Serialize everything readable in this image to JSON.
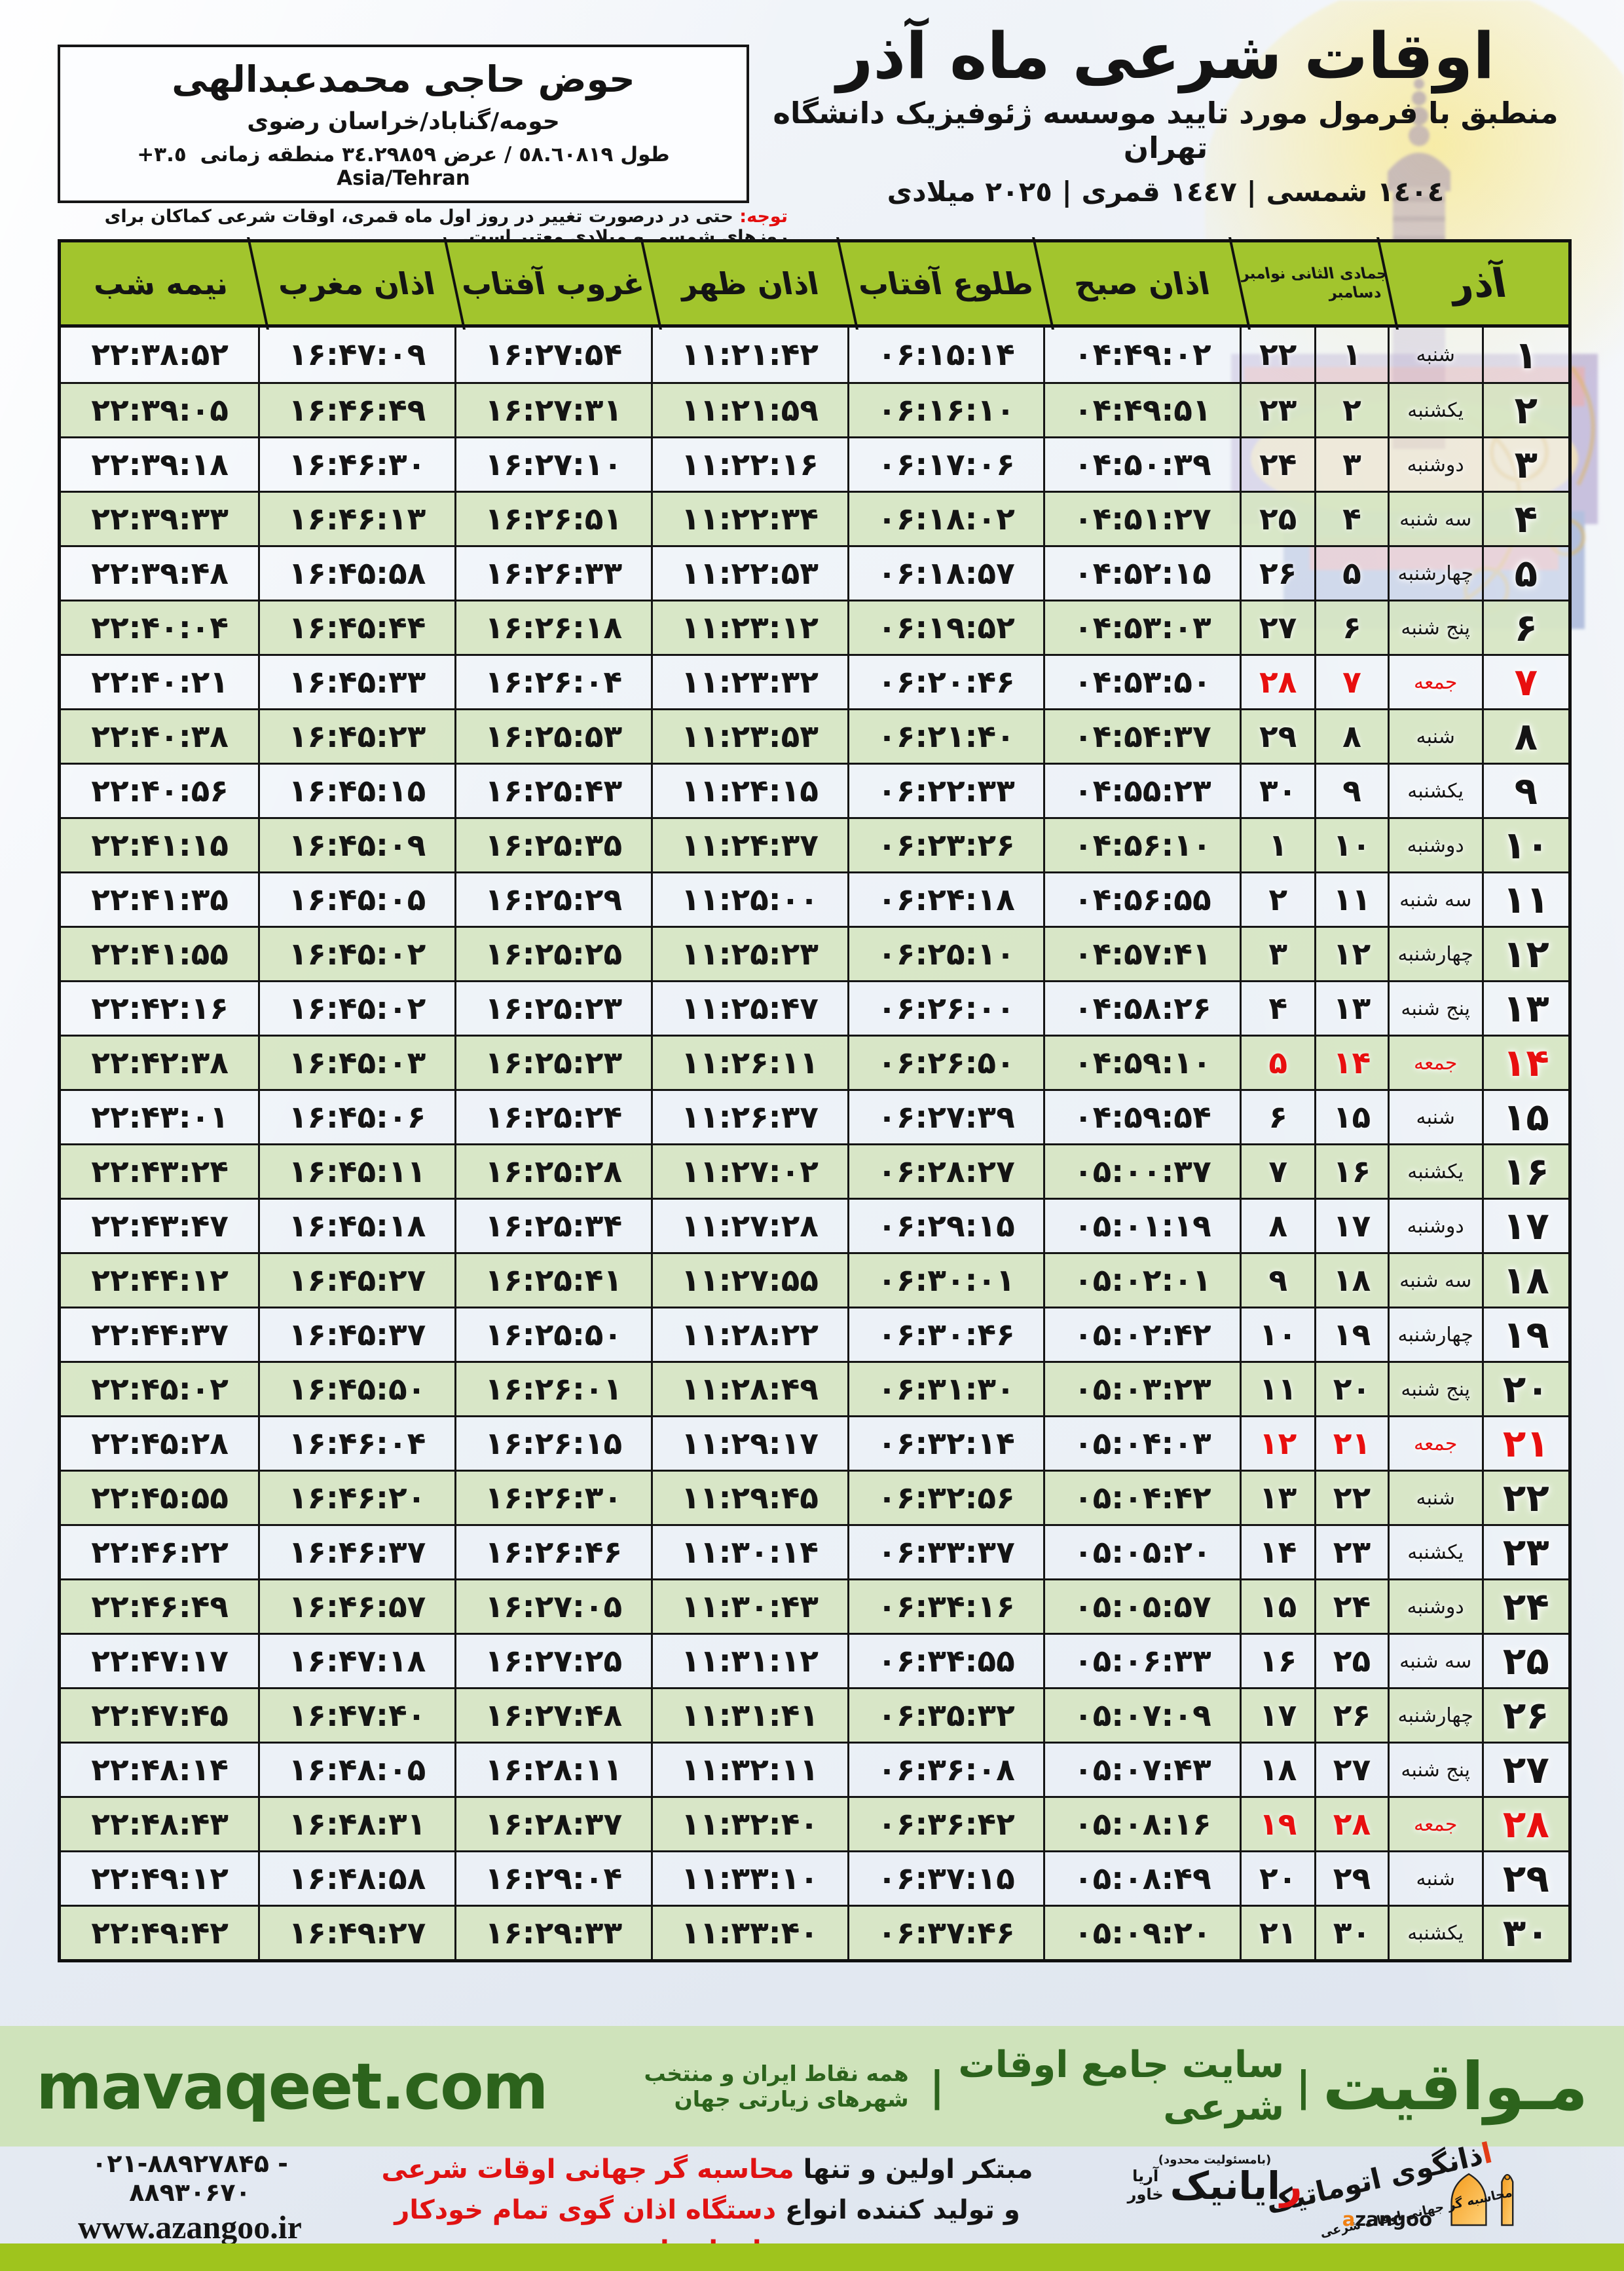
{
  "colors": {
    "header_green": "#a2c52d",
    "row_green": "#d7e6c4",
    "row_light": "#f3f6fa",
    "friday_red": "#e80f0f",
    "footer_bg": "#cfe3bb",
    "footer_text_green": "#2c631c",
    "bottom_bar_green": "#9fc41d",
    "logo_orange": "#f49b1b"
  },
  "location_box": {
    "name": "حوض حاجی محمدعبدالهی",
    "area": "حومه/گناباد/خراسان رضوی",
    "coords_pre": "طول ٥٨.٦٠٨١٩ / عرض ٣٤.٢٩٨٥٩ منطقه زمانی",
    "coords_tz": "+٣.٥",
    "coords_zone": "Asia/Tehran"
  },
  "title_block": {
    "title": "اوقات شرعی ماه آذر",
    "subtitle": "منطبق با فرمول مورد تایید موسسه ژئوفیزیک دانشگاه تهران",
    "years": "١٤٠٤ شمسی | ١٤٤٧ قمری | ٢٠٢٥ میلادی"
  },
  "note": {
    "label": "توجه:",
    "text": " حتی در درصورت تغییر در روز اول ماه قمری، اوقات شرعی کماکان برای روزهای شمسی و میلادی معتبر است."
  },
  "table": {
    "headers": {
      "azar": "آذر",
      "hijri_line1": "جمادی الثانی نوامبر",
      "hijri_line2": "دسامبر",
      "fajr": "اذان صبح",
      "sunrise": "طلوع آفتاب",
      "noon": "اذان ظهر",
      "sunset": "غروب آفتاب",
      "maghrib": "اذان مغرب",
      "midnight": "نیمه شب"
    },
    "rows": [
      {
        "d": 1,
        "w": "شنبه",
        "l": 1,
        "g": 22,
        "fajr": "04:49:02",
        "sunrise": "06:15:14",
        "noon": "11:21:42",
        "sunset": "16:27:54",
        "maghrib": "16:47:09",
        "mid": "22:38:52",
        "friday": false
      },
      {
        "d": 2,
        "w": "یکشنبه",
        "l": 2,
        "g": 23,
        "fajr": "04:49:51",
        "sunrise": "06:16:10",
        "noon": "11:21:59",
        "sunset": "16:27:31",
        "maghrib": "16:46:49",
        "mid": "22:39:05",
        "friday": false
      },
      {
        "d": 3,
        "w": "دوشنبه",
        "l": 3,
        "g": 24,
        "fajr": "04:50:39",
        "sunrise": "06:17:06",
        "noon": "11:22:16",
        "sunset": "16:27:10",
        "maghrib": "16:46:30",
        "mid": "22:39:18",
        "friday": false
      },
      {
        "d": 4,
        "w": "سه شنبه",
        "l": 4,
        "g": 25,
        "fajr": "04:51:27",
        "sunrise": "06:18:02",
        "noon": "11:22:34",
        "sunset": "16:26:51",
        "maghrib": "16:46:13",
        "mid": "22:39:33",
        "friday": false
      },
      {
        "d": 5,
        "w": "چهارشنبه",
        "l": 5,
        "g": 26,
        "fajr": "04:52:15",
        "sunrise": "06:18:57",
        "noon": "11:22:53",
        "sunset": "16:26:33",
        "maghrib": "16:45:58",
        "mid": "22:39:48",
        "friday": false
      },
      {
        "d": 6,
        "w": "پنج شنبه",
        "l": 6,
        "g": 27,
        "fajr": "04:53:03",
        "sunrise": "06:19:52",
        "noon": "11:23:12",
        "sunset": "16:26:18",
        "maghrib": "16:45:44",
        "mid": "22:40:04",
        "friday": false
      },
      {
        "d": 7,
        "w": "جمعه",
        "l": 7,
        "g": 28,
        "fajr": "04:53:50",
        "sunrise": "06:20:46",
        "noon": "11:23:32",
        "sunset": "16:26:04",
        "maghrib": "16:45:33",
        "mid": "22:40:21",
        "friday": true
      },
      {
        "d": 8,
        "w": "شنبه",
        "l": 8,
        "g": 29,
        "fajr": "04:54:37",
        "sunrise": "06:21:40",
        "noon": "11:23:53",
        "sunset": "16:25:53",
        "maghrib": "16:45:23",
        "mid": "22:40:38",
        "friday": false
      },
      {
        "d": 9,
        "w": "یکشنبه",
        "l": 9,
        "g": 30,
        "fajr": "04:55:23",
        "sunrise": "06:22:33",
        "noon": "11:24:15",
        "sunset": "16:25:43",
        "maghrib": "16:45:15",
        "mid": "22:40:56",
        "friday": false
      },
      {
        "d": 10,
        "w": "دوشنبه",
        "l": 10,
        "g": 1,
        "fajr": "04:56:10",
        "sunrise": "06:23:26",
        "noon": "11:24:37",
        "sunset": "16:25:35",
        "maghrib": "16:45:09",
        "mid": "22:41:15",
        "friday": false
      },
      {
        "d": 11,
        "w": "سه شنبه",
        "l": 11,
        "g": 2,
        "fajr": "04:56:55",
        "sunrise": "06:24:18",
        "noon": "11:25:00",
        "sunset": "16:25:29",
        "maghrib": "16:45:05",
        "mid": "22:41:35",
        "friday": false
      },
      {
        "d": 12,
        "w": "چهارشنبه",
        "l": 12,
        "g": 3,
        "fajr": "04:57:41",
        "sunrise": "06:25:10",
        "noon": "11:25:23",
        "sunset": "16:25:25",
        "maghrib": "16:45:02",
        "mid": "22:41:55",
        "friday": false
      },
      {
        "d": 13,
        "w": "پنج شنبه",
        "l": 13,
        "g": 4,
        "fajr": "04:58:26",
        "sunrise": "06:26:00",
        "noon": "11:25:47",
        "sunset": "16:25:23",
        "maghrib": "16:45:02",
        "mid": "22:42:16",
        "friday": false
      },
      {
        "d": 14,
        "w": "جمعه",
        "l": 14,
        "g": 5,
        "fajr": "04:59:10",
        "sunrise": "06:26:50",
        "noon": "11:26:11",
        "sunset": "16:25:23",
        "maghrib": "16:45:03",
        "mid": "22:42:38",
        "friday": true
      },
      {
        "d": 15,
        "w": "شنبه",
        "l": 15,
        "g": 6,
        "fajr": "04:59:54",
        "sunrise": "06:27:39",
        "noon": "11:26:37",
        "sunset": "16:25:24",
        "maghrib": "16:45:06",
        "mid": "22:43:01",
        "friday": false
      },
      {
        "d": 16,
        "w": "یکشنبه",
        "l": 16,
        "g": 7,
        "fajr": "05:00:37",
        "sunrise": "06:28:27",
        "noon": "11:27:02",
        "sunset": "16:25:28",
        "maghrib": "16:45:11",
        "mid": "22:43:24",
        "friday": false
      },
      {
        "d": 17,
        "w": "دوشنبه",
        "l": 17,
        "g": 8,
        "fajr": "05:01:19",
        "sunrise": "06:29:15",
        "noon": "11:27:28",
        "sunset": "16:25:34",
        "maghrib": "16:45:18",
        "mid": "22:43:47",
        "friday": false
      },
      {
        "d": 18,
        "w": "سه شنبه",
        "l": 18,
        "g": 9,
        "fajr": "05:02:01",
        "sunrise": "06:30:01",
        "noon": "11:27:55",
        "sunset": "16:25:41",
        "maghrib": "16:45:27",
        "mid": "22:44:12",
        "friday": false
      },
      {
        "d": 19,
        "w": "چهارشنبه",
        "l": 19,
        "g": 10,
        "fajr": "05:02:42",
        "sunrise": "06:30:46",
        "noon": "11:28:22",
        "sunset": "16:25:50",
        "maghrib": "16:45:37",
        "mid": "22:44:37",
        "friday": false
      },
      {
        "d": 20,
        "w": "پنج شنبه",
        "l": 20,
        "g": 11,
        "fajr": "05:03:23",
        "sunrise": "06:31:30",
        "noon": "11:28:49",
        "sunset": "16:26:01",
        "maghrib": "16:45:50",
        "mid": "22:45:02",
        "friday": false
      },
      {
        "d": 21,
        "w": "جمعه",
        "l": 21,
        "g": 12,
        "fajr": "05:04:03",
        "sunrise": "06:32:14",
        "noon": "11:29:17",
        "sunset": "16:26:15",
        "maghrib": "16:46:04",
        "mid": "22:45:28",
        "friday": true
      },
      {
        "d": 22,
        "w": "شنبه",
        "l": 22,
        "g": 13,
        "fajr": "05:04:42",
        "sunrise": "06:32:56",
        "noon": "11:29:45",
        "sunset": "16:26:30",
        "maghrib": "16:46:20",
        "mid": "22:45:55",
        "friday": false
      },
      {
        "d": 23,
        "w": "یکشنبه",
        "l": 23,
        "g": 14,
        "fajr": "05:05:20",
        "sunrise": "06:33:37",
        "noon": "11:30:14",
        "sunset": "16:26:46",
        "maghrib": "16:46:37",
        "mid": "22:46:22",
        "friday": false
      },
      {
        "d": 24,
        "w": "دوشنبه",
        "l": 24,
        "g": 15,
        "fajr": "05:05:57",
        "sunrise": "06:34:16",
        "noon": "11:30:43",
        "sunset": "16:27:05",
        "maghrib": "16:46:57",
        "mid": "22:46:49",
        "friday": false
      },
      {
        "d": 25,
        "w": "سه شنبه",
        "l": 25,
        "g": 16,
        "fajr": "05:06:33",
        "sunrise": "06:34:55",
        "noon": "11:31:12",
        "sunset": "16:27:25",
        "maghrib": "16:47:18",
        "mid": "22:47:17",
        "friday": false
      },
      {
        "d": 26,
        "w": "چهارشنبه",
        "l": 26,
        "g": 17,
        "fajr": "05:07:09",
        "sunrise": "06:35:32",
        "noon": "11:31:41",
        "sunset": "16:27:48",
        "maghrib": "16:47:40",
        "mid": "22:47:45",
        "friday": false
      },
      {
        "d": 27,
        "w": "پنج شنبه",
        "l": 27,
        "g": 18,
        "fajr": "05:07:43",
        "sunrise": "06:36:08",
        "noon": "11:32:11",
        "sunset": "16:28:11",
        "maghrib": "16:48:05",
        "mid": "22:48:14",
        "friday": false
      },
      {
        "d": 28,
        "w": "جمعه",
        "l": 28,
        "g": 19,
        "fajr": "05:08:16",
        "sunrise": "06:36:42",
        "noon": "11:32:40",
        "sunset": "16:28:37",
        "maghrib": "16:48:31",
        "mid": "22:48:43",
        "friday": true
      },
      {
        "d": 29,
        "w": "شنبه",
        "l": 29,
        "g": 20,
        "fajr": "05:08:49",
        "sunrise": "06:37:15",
        "noon": "11:33:10",
        "sunset": "16:29:04",
        "maghrib": "16:48:58",
        "mid": "22:49:12",
        "friday": false
      },
      {
        "d": 30,
        "w": "یکشنبه",
        "l": 30,
        "g": 21,
        "fajr": "05:09:20",
        "sunrise": "06:37:46",
        "noon": "11:33:40",
        "sunset": "16:29:33",
        "maghrib": "16:49:27",
        "mid": "22:49:42",
        "friday": false
      }
    ]
  },
  "footer": {
    "brand_fa": "مـواقیت",
    "sep": "|",
    "site_label": "سایت جامع اوقات شرعی",
    "site_desc": "همه نقاط ایران و منتخب شهرهای زیارتی جهان",
    "brand_latin": "mavaqeet.com"
  },
  "bottom": {
    "azangoo_fa_first": "ا",
    "azangoo_fa_rest": "ذانگوی اتوماتیک",
    "azangoo_sub": "محاسبه گر جهانی اوقات شرعی",
    "azangoo_latin_a": "a",
    "azangoo_latin_rest": "zangoo",
    "rayanik_pre": "(بامسئولیت محدود)",
    "rayanik_first": "ر",
    "rayanik_rest": "ایانیک",
    "rayanik_stack1": "آریا",
    "rayanik_stack2": "خاور",
    "promo1_black": "مبتکر اولین و تنها ",
    "promo1_red": "محاسبه گر جهانی اوقات شرعی",
    "promo2_black": "و تولید کننده انواع ",
    "promo2_red": "دستگاه اذان گوی تمام خودکار ماهواره ای",
    "phone": "021-88927845 - 88930670",
    "website": "www.azangoo.ir"
  }
}
